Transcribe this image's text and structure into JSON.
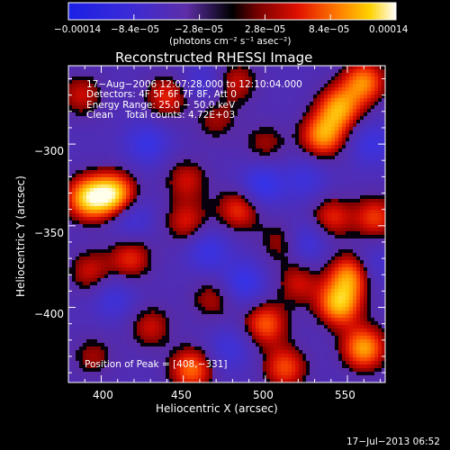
{
  "colorbar": {
    "tick_labels": [
      "−0.00014",
      "−8.4e−05",
      "−2.8e−05",
      "2.8e−05",
      "8.4e−05",
      "0.00014"
    ],
    "unit_label": "(photons cm⁻² s⁻¹ asec⁻²)",
    "range": [
      -0.00014,
      0.00014
    ],
    "colormap": "sign-split: negative blue-purple, positive red-orange-yellow-white"
  },
  "chart_data": {
    "type": "heatmap",
    "title": "Reconstructed RHESSI Image",
    "xlabel": "Heliocentric X (arcsec)",
    "ylabel": "Heliocentric Y (arcsec)",
    "xlim": [
      380,
      573
    ],
    "ylim": [
      -446,
      -252
    ],
    "x_ticks": [
      400,
      450,
      500,
      550
    ],
    "y_ticks": [
      -300,
      -350,
      -400
    ],
    "x_tick_labels": [
      "400",
      "450",
      "500",
      "550"
    ],
    "y_tick_labels": [
      "−300",
      "−350",
      "−400"
    ],
    "annotations": [
      "17−Aug−2006 12:07:28.000 to 12:10:04.000",
      "Detectors: 4F 5F 6F 7F 8F, Att 0",
      "Energy Range: 25.0 − 50.0 keV",
      "Clean    Total counts: 4.72E+03"
    ],
    "peak_label": "Position of Peak = [408,−331]",
    "peak_position": [
      408,
      -331
    ],
    "sources": [
      {
        "x": 392,
        "y": -333,
        "v": 1.0
      },
      {
        "x": 408,
        "y": -331,
        "v": 1.05
      },
      {
        "x": 440,
        "y": -271,
        "v": 0.55
      },
      {
        "x": 470,
        "y": -285,
        "v": 0.35
      },
      {
        "x": 452,
        "y": -322,
        "v": 0.45
      },
      {
        "x": 484,
        "y": -340,
        "v": 0.6
      },
      {
        "x": 452,
        "y": -348,
        "v": 0.5
      },
      {
        "x": 418,
        "y": -370,
        "v": 0.55
      },
      {
        "x": 393,
        "y": -378,
        "v": 0.45
      },
      {
        "x": 430,
        "y": -412,
        "v": 0.45
      },
      {
        "x": 455,
        "y": -438,
        "v": 0.75
      },
      {
        "x": 500,
        "y": -410,
        "v": 0.7
      },
      {
        "x": 520,
        "y": -385,
        "v": 0.45
      },
      {
        "x": 512,
        "y": -437,
        "v": 0.65
      },
      {
        "x": 545,
        "y": -398,
        "v": 0.95
      },
      {
        "x": 552,
        "y": -380,
        "v": 0.85
      },
      {
        "x": 560,
        "y": -425,
        "v": 0.9
      },
      {
        "x": 535,
        "y": -295,
        "v": 0.85
      },
      {
        "x": 545,
        "y": -278,
        "v": 0.85
      },
      {
        "x": 560,
        "y": -262,
        "v": 0.8
      },
      {
        "x": 567,
        "y": -345,
        "v": 0.6
      },
      {
        "x": 540,
        "y": -345,
        "v": 0.55
      },
      {
        "x": 510,
        "y": -360,
        "v": 0.4
      },
      {
        "x": 388,
        "y": -270,
        "v": 0.45
      },
      {
        "x": 395,
        "y": -430,
        "v": 0.35
      },
      {
        "x": 482,
        "y": -262,
        "v": 0.45
      },
      {
        "x": 500,
        "y": -300,
        "v": 0.35
      },
      {
        "x": 468,
        "y": -395,
        "v": 0.4
      },
      {
        "x": 428,
        "y": -300,
        "v": -0.45
      },
      {
        "x": 498,
        "y": -325,
        "v": -0.55
      },
      {
        "x": 465,
        "y": -365,
        "v": -0.45
      },
      {
        "x": 408,
        "y": -395,
        "v": -0.35
      },
      {
        "x": 487,
        "y": -385,
        "v": -0.5
      },
      {
        "x": 525,
        "y": -360,
        "v": -0.45
      },
      {
        "x": 478,
        "y": -425,
        "v": -0.35
      },
      {
        "x": 525,
        "y": -322,
        "v": -0.35
      },
      {
        "x": 462,
        "y": -262,
        "v": -0.3
      },
      {
        "x": 418,
        "y": -345,
        "v": -0.4
      },
      {
        "x": 565,
        "y": -375,
        "v": -0.35
      },
      {
        "x": 565,
        "y": -300,
        "v": -0.4
      }
    ]
  },
  "timestamp": "17−Jul−2013 06:52"
}
